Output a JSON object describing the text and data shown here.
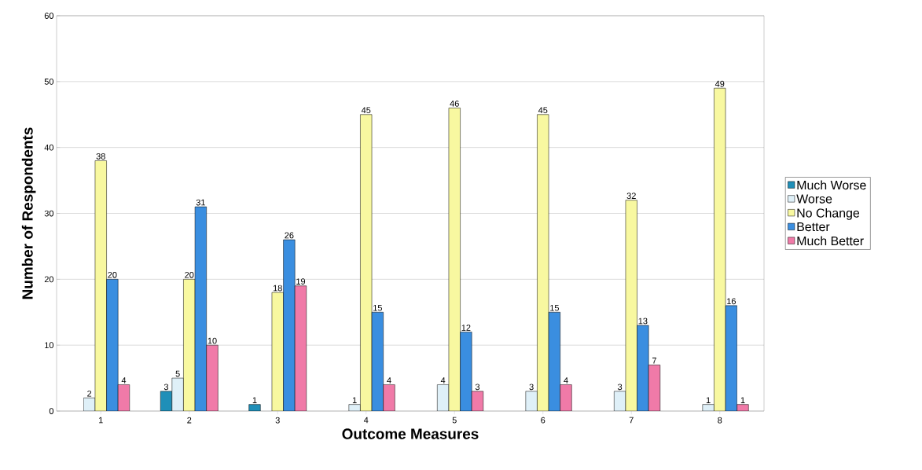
{
  "chart_data": {
    "type": "bar",
    "xlabel": "Outcome Measures",
    "ylabel": "Number of Respondents",
    "categories": [
      "1",
      "2",
      "3",
      "4",
      "5",
      "6",
      "7",
      "8"
    ],
    "series": [
      {
        "name": "Much Worse",
        "color": "#1f8fb8",
        "values": [
          null,
          3,
          1,
          null,
          null,
          null,
          null,
          null
        ]
      },
      {
        "name": "Worse",
        "color": "#dff0f8",
        "values": [
          2,
          5,
          null,
          1,
          4,
          3,
          3,
          1
        ]
      },
      {
        "name": "No Change",
        "color": "#f8f8a0",
        "values": [
          38,
          20,
          18,
          45,
          46,
          45,
          32,
          49
        ]
      },
      {
        "name": "Better",
        "color": "#3a8ee0",
        "values": [
          20,
          31,
          26,
          15,
          12,
          15,
          13,
          16
        ]
      },
      {
        "name": "Much Better",
        "color": "#f07aa8",
        "values": [
          4,
          10,
          19,
          4,
          3,
          4,
          7,
          1
        ]
      }
    ],
    "ylim": [
      0,
      60
    ],
    "yticks": [
      0,
      10,
      20,
      30,
      40,
      50,
      60
    ],
    "grid": "y",
    "legend": "right",
    "data_labels": true
  }
}
